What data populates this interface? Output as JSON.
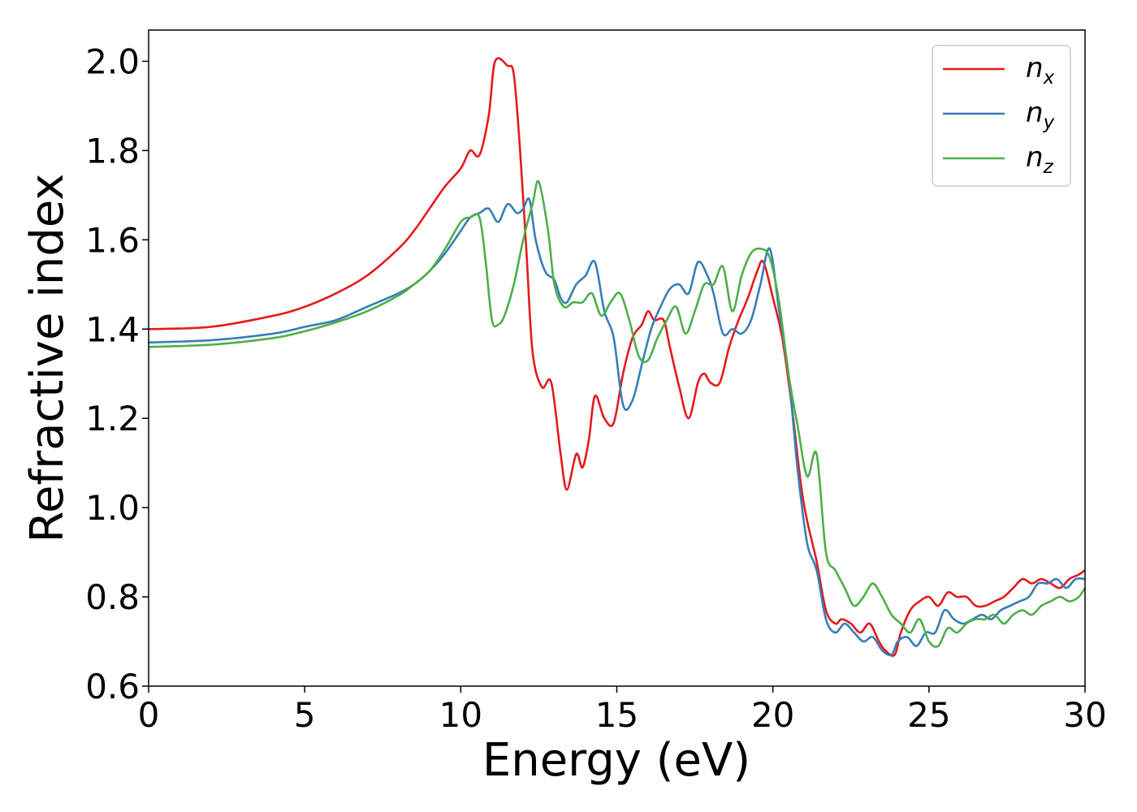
{
  "chart_data": {
    "type": "line",
    "title": "",
    "xlabel": "Energy (eV)",
    "ylabel": "Refractive index",
    "xlim": [
      0,
      30
    ],
    "ylim": [
      0.6,
      2.07
    ],
    "xticks": [
      0,
      5,
      10,
      15,
      20,
      25,
      30
    ],
    "xtick_labels": [
      "0",
      "5",
      "10",
      "15",
      "20",
      "25",
      "30"
    ],
    "yticks": [
      0.6,
      0.8,
      1.0,
      1.2,
      1.4,
      1.6,
      1.8,
      2.0
    ],
    "ytick_labels": [
      "0.6",
      "0.8",
      "1.0",
      "1.2",
      "1.4",
      "1.6",
      "1.8",
      "2.0"
    ],
    "grid": false,
    "legend_position": "top-right",
    "series": [
      {
        "name": "n",
        "subscript": "x",
        "color": "#e41a1c",
        "x": [
          0,
          2,
          4,
          5,
          6,
          7,
          8,
          8.5,
          9,
          9.5,
          10,
          10.3,
          10.6,
          10.9,
          11.1,
          11.5,
          11.7,
          11.9,
          12.1,
          12.3,
          12.6,
          12.9,
          13.2,
          13.4,
          13.7,
          13.9,
          14.1,
          14.3,
          14.6,
          14.9,
          15.2,
          15.5,
          15.8,
          16,
          16.2,
          16.5,
          16.7,
          17,
          17.3,
          17.6,
          17.8,
          18,
          18.3,
          18.6,
          18.9,
          19.2,
          19.5,
          19.7,
          20,
          20.3,
          20.6,
          20.9,
          21.1,
          21.4,
          21.7,
          22,
          22.2,
          22.5,
          22.8,
          23.1,
          23.4,
          23.6,
          23.9,
          24.1,
          24.4,
          24.7,
          25,
          25.3,
          25.6,
          25.9,
          26.2,
          26.5,
          26.8,
          27.1,
          27.4,
          27.7,
          28,
          28.3,
          28.6,
          28.9,
          29.2,
          29.5,
          29.8,
          30
        ],
        "y": [
          1.4,
          1.405,
          1.43,
          1.45,
          1.48,
          1.52,
          1.58,
          1.62,
          1.67,
          1.72,
          1.76,
          1.8,
          1.79,
          1.88,
          2.0,
          1.99,
          1.97,
          1.8,
          1.58,
          1.35,
          1.27,
          1.28,
          1.12,
          1.04,
          1.12,
          1.09,
          1.15,
          1.25,
          1.2,
          1.19,
          1.3,
          1.38,
          1.41,
          1.44,
          1.42,
          1.42,
          1.36,
          1.27,
          1.2,
          1.28,
          1.3,
          1.28,
          1.28,
          1.36,
          1.42,
          1.47,
          1.53,
          1.55,
          1.47,
          1.38,
          1.23,
          1.05,
          0.97,
          0.88,
          0.77,
          0.74,
          0.75,
          0.74,
          0.72,
          0.74,
          0.7,
          0.68,
          0.67,
          0.72,
          0.77,
          0.79,
          0.8,
          0.78,
          0.81,
          0.8,
          0.8,
          0.78,
          0.78,
          0.79,
          0.8,
          0.82,
          0.84,
          0.83,
          0.84,
          0.83,
          0.82,
          0.84,
          0.85,
          0.86
        ]
      },
      {
        "name": "n",
        "subscript": "y",
        "color": "#377eb8",
        "x": [
          0,
          2,
          4,
          5,
          6,
          7,
          8,
          8.5,
          9,
          9.5,
          10,
          10.3,
          10.6,
          10.9,
          11.2,
          11.5,
          11.8,
          12,
          12.2,
          12.4,
          12.7,
          13,
          13.2,
          13.4,
          13.7,
          14,
          14.3,
          14.6,
          14.9,
          15.2,
          15.5,
          15.8,
          16.1,
          16.4,
          16.7,
          17,
          17.3,
          17.6,
          17.9,
          18.1,
          18.4,
          18.7,
          19,
          19.3,
          19.6,
          19.9,
          20.2,
          20.5,
          20.8,
          21.1,
          21.4,
          21.7,
          22,
          22.3,
          22.6,
          22.9,
          23.2,
          23.5,
          23.8,
          24,
          24.3,
          24.6,
          24.9,
          25.2,
          25.5,
          25.8,
          26.1,
          26.4,
          26.7,
          27,
          27.3,
          27.6,
          27.9,
          28.2,
          28.5,
          28.8,
          29.1,
          29.4,
          29.7,
          30
        ],
        "y": [
          1.37,
          1.375,
          1.39,
          1.405,
          1.42,
          1.45,
          1.48,
          1.5,
          1.53,
          1.57,
          1.62,
          1.65,
          1.66,
          1.67,
          1.64,
          1.68,
          1.66,
          1.67,
          1.69,
          1.6,
          1.53,
          1.51,
          1.47,
          1.46,
          1.5,
          1.52,
          1.55,
          1.44,
          1.38,
          1.23,
          1.24,
          1.32,
          1.4,
          1.45,
          1.49,
          1.5,
          1.48,
          1.55,
          1.52,
          1.48,
          1.39,
          1.4,
          1.39,
          1.42,
          1.5,
          1.58,
          1.44,
          1.3,
          1.08,
          0.92,
          0.86,
          0.75,
          0.72,
          0.74,
          0.72,
          0.7,
          0.71,
          0.68,
          0.67,
          0.7,
          0.71,
          0.69,
          0.72,
          0.72,
          0.77,
          0.75,
          0.74,
          0.75,
          0.76,
          0.75,
          0.77,
          0.78,
          0.79,
          0.8,
          0.83,
          0.83,
          0.84,
          0.82,
          0.84,
          0.84
        ]
      },
      {
        "name": "n",
        "subscript": "z",
        "color": "#4daf4a",
        "x": [
          0,
          2,
          4,
          5,
          6,
          7,
          8,
          8.5,
          9,
          9.5,
          10,
          10.3,
          10.6,
          10.8,
          11,
          11.2,
          11.4,
          11.7,
          12,
          12.3,
          12.5,
          12.8,
          13,
          13.3,
          13.6,
          13.9,
          14.2,
          14.5,
          14.8,
          15.1,
          15.4,
          15.7,
          16,
          16.3,
          16.6,
          16.9,
          17.2,
          17.5,
          17.8,
          18.1,
          18.4,
          18.7,
          19,
          19.3,
          19.6,
          19.9,
          20.2,
          20.5,
          20.8,
          21.1,
          21.4,
          21.7,
          22,
          22.3,
          22.6,
          22.9,
          23.2,
          23.5,
          23.8,
          24.1,
          24.4,
          24.7,
          25,
          25.3,
          25.6,
          25.9,
          26.2,
          26.5,
          26.8,
          27.1,
          27.4,
          27.7,
          28,
          28.3,
          28.6,
          28.9,
          29.2,
          29.5,
          29.8,
          30
        ],
        "y": [
          1.36,
          1.365,
          1.38,
          1.395,
          1.415,
          1.44,
          1.475,
          1.5,
          1.53,
          1.58,
          1.64,
          1.65,
          1.65,
          1.55,
          1.42,
          1.41,
          1.43,
          1.5,
          1.6,
          1.68,
          1.73,
          1.62,
          1.5,
          1.45,
          1.46,
          1.46,
          1.48,
          1.43,
          1.46,
          1.48,
          1.42,
          1.34,
          1.33,
          1.38,
          1.42,
          1.45,
          1.39,
          1.44,
          1.5,
          1.5,
          1.54,
          1.44,
          1.52,
          1.57,
          1.58,
          1.56,
          1.46,
          1.3,
          1.18,
          1.07,
          1.12,
          0.9,
          0.86,
          0.82,
          0.78,
          0.8,
          0.83,
          0.8,
          0.76,
          0.74,
          0.72,
          0.75,
          0.7,
          0.69,
          0.73,
          0.72,
          0.74,
          0.75,
          0.75,
          0.76,
          0.74,
          0.76,
          0.77,
          0.76,
          0.78,
          0.79,
          0.8,
          0.79,
          0.8,
          0.82
        ]
      }
    ]
  }
}
